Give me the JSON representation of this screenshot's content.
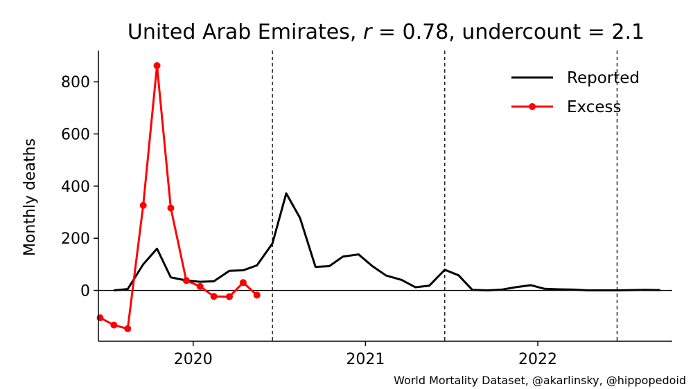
{
  "chart_data": {
    "type": "line",
    "title": "United Arab Emirates, r = 0.78, undercount = 2.1",
    "title_parts": [
      "United Arab Emirates, ",
      "r",
      " = 0.78, undercount = 2.1"
    ],
    "xlabel": "",
    "ylabel": "Monthly deaths",
    "xlim": [
      2019.45,
      2022.78
    ],
    "ylim": [
      -195,
      920
    ],
    "yticks": [
      0,
      200,
      400,
      600,
      800
    ],
    "xticks": [
      {
        "value": 2020,
        "label": "2020"
      },
      {
        "value": 2021,
        "label": "2021"
      },
      {
        "value": 2022,
        "label": "2022"
      }
    ],
    "vlines": [
      2020.46,
      2021.46,
      2022.46
    ],
    "zero_line": true,
    "grid": false,
    "legend_position": "top-right",
    "series": [
      {
        "name": "Reported",
        "color": "#000000",
        "marker": false,
        "x": [
          2019.54,
          2019.62,
          2019.71,
          2019.79,
          2019.87,
          2019.96,
          2020.04,
          2020.12,
          2020.21,
          2020.29,
          2020.37,
          2020.46,
          2020.54,
          2020.62,
          2020.71,
          2020.79,
          2020.87,
          2020.96,
          2021.04,
          2021.12,
          2021.21,
          2021.29,
          2021.37,
          2021.46,
          2021.54,
          2021.62,
          2021.71,
          2021.79,
          2021.87,
          2021.96,
          2022.04,
          2022.12,
          2022.21,
          2022.29,
          2022.37,
          2022.46,
          2022.54,
          2022.62,
          2022.71
        ],
        "values": [
          0,
          5,
          100,
          160,
          50,
          38,
          33,
          35,
          75,
          77,
          96,
          180,
          372,
          278,
          90,
          93,
          130,
          138,
          93,
          57,
          40,
          12,
          18,
          79,
          58,
          2,
          0,
          3,
          12,
          20,
          6,
          4,
          3,
          0,
          0,
          0,
          1,
          2,
          1
        ]
      },
      {
        "name": "Excess",
        "color": "#ff0000",
        "marker": true,
        "x": [
          2019.46,
          2019.54,
          2019.62,
          2019.71,
          2019.79,
          2019.87,
          2019.96,
          2020.04,
          2020.12,
          2020.21,
          2020.29,
          2020.37,
          2020.46
        ],
        "values": [
          -105,
          -133,
          -147,
          326,
          862,
          316,
          38,
          15,
          -23,
          -24,
          30,
          -18,
          null
        ]
      }
    ],
    "credit": "World Mortality Dataset, @akarlinsky, @hippopedoid"
  }
}
